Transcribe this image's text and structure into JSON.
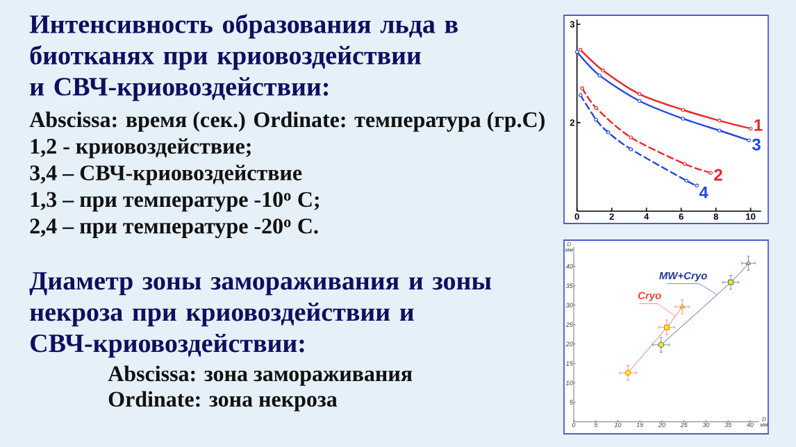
{
  "chart_data": [
    {
      "type": "line",
      "title": "Интенсивность образования льда в биотканях при криовоздействии и СВЧ-криовоздействии:",
      "annotations": [
        "Abscissa: время (сек.)  Ordinate: температура (гр.С)",
        "1,2 - криовоздействие;",
        "3,4 – СВЧ-криовоздействие",
        "1,3 – при температуре -10$^{o}$ C;",
        "2,4 – при температуре -20$^{o}$ C."
      ],
      "xlim": [
        0,
        10.6
      ],
      "ylim": [
        1.1,
        3.05
      ],
      "xticks": [
        0,
        2,
        4,
        6,
        8,
        10
      ],
      "yticks": [
        2,
        3
      ],
      "marker": "circle",
      "series": [
        {
          "name": "1",
          "color": "#e8262a",
          "line_style": "solid",
          "x": [
            0.2,
            1.5,
            3.6,
            6.1,
            8.2,
            10.0
          ],
          "values": [
            2.74,
            2.53,
            2.29,
            2.13,
            2.02,
            1.94
          ]
        },
        {
          "name": "2",
          "color": "#e8262a",
          "line_style": "dashed",
          "x": [
            0.3,
            1.1,
            3.1,
            6.2,
            7.7
          ],
          "values": [
            2.35,
            2.15,
            1.85,
            1.58,
            1.49
          ]
        },
        {
          "name": "3",
          "color": "#2446e0",
          "line_style": "solid",
          "x": [
            0.0,
            1.3,
            3.6,
            6.1,
            8.2,
            9.9
          ],
          "values": [
            2.72,
            2.48,
            2.22,
            2.04,
            1.92,
            1.82
          ]
        },
        {
          "name": "4",
          "color": "#2446e0",
          "line_style": "dashed",
          "x": [
            0.2,
            1.1,
            1.8,
            3.1,
            6.3,
            6.9
          ],
          "values": [
            2.28,
            2.03,
            1.9,
            1.73,
            1.41,
            1.36
          ]
        }
      ]
    },
    {
      "type": "line",
      "title": "Диаметр зоны замораживания и зоны некроза при криовоздействии и СВЧ-криовоздействии:",
      "annotations": [
        "Abscissa:  зона замораживания",
        "Ordinate:  зона некроза"
      ],
      "xlabel": "D мм",
      "ylabel": "D мм",
      "xlim": [
        0,
        42
      ],
      "ylim": [
        0,
        45
      ],
      "xticks": [
        0,
        5,
        10,
        15,
        20,
        25,
        30,
        35,
        40
      ],
      "yticks": [
        5,
        10,
        15,
        20,
        25,
        30,
        35,
        40
      ],
      "series": [
        {
          "name": "Cryo",
          "color": "#e84a32",
          "marker": [
            "circle",
            "square",
            "triangle"
          ],
          "x": [
            12.3,
            21.1,
            24.6
          ],
          "values": [
            12.6,
            24.3,
            29.6
          ],
          "errors": [
            1.9,
            1.9,
            1.8
          ],
          "xerrors": [
            1.9,
            1.8,
            1.6
          ]
        },
        {
          "name": "MW+Cryo",
          "color": "#23388f",
          "marker": [
            "circle",
            "square",
            "triangle"
          ],
          "x": [
            19.8,
            35.6,
            39.6
          ],
          "values": [
            19.8,
            35.9,
            40.8
          ],
          "errors": [
            1.9,
            1.8,
            1.8
          ],
          "xerrors": [
            1.9,
            1.8,
            1.5
          ]
        }
      ]
    }
  ]
}
